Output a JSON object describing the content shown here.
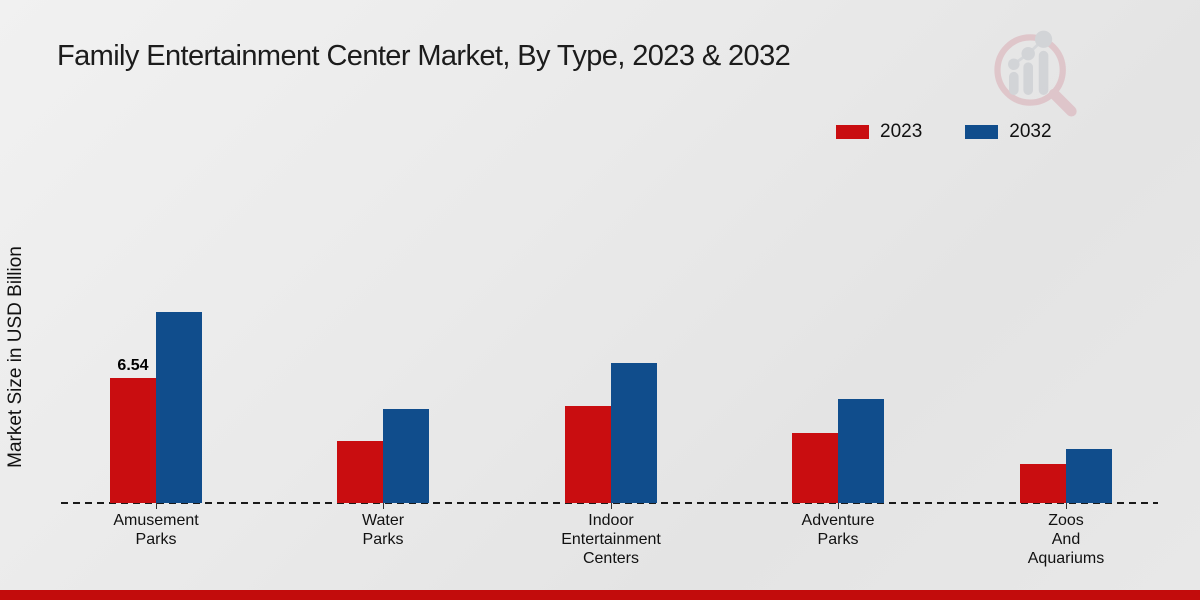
{
  "page": {
    "background_top": "#f1f1f1",
    "background_bottom": "#e4e4e4",
    "footer_bar_color": "#c20c0c"
  },
  "watermark": {
    "icon": "bar-chart-magnifier-logo-icon",
    "ring_color": "#d9a7b0",
    "bars_color": "#c0c3ca"
  },
  "chart_data": {
    "type": "bar",
    "title": "Family Entertainment Center Market, By Type, 2023 & 2032",
    "xlabel": "",
    "ylabel": "Market Size in USD Billion",
    "categories": [
      "Amusement Parks",
      "Water Parks",
      "Indoor Entertainment Centers",
      "Adventure Parks",
      "Zoos And Aquariums"
    ],
    "categories_multiline": [
      "Amusement\nParks",
      "Water\nParks",
      "Indoor\nEntertainment\nCenters",
      "Adventure\nParks",
      "Zoos\nAnd\nAquariums"
    ],
    "series": [
      {
        "name": "2023",
        "color": "#c90d10",
        "values": [
          6.54,
          3.25,
          5.1,
          3.7,
          2.05
        ]
      },
      {
        "name": "2032",
        "color": "#104d8c",
        "values": [
          10.0,
          4.95,
          7.35,
          5.45,
          2.85
        ]
      }
    ],
    "bar_labels": [
      {
        "series": 0,
        "category": 0,
        "text": "6.54"
      }
    ],
    "units": "USD Billion",
    "ylim": [
      0,
      12
    ],
    "grid": false,
    "baseline_style": "dashed",
    "legend_position": "top-right"
  }
}
